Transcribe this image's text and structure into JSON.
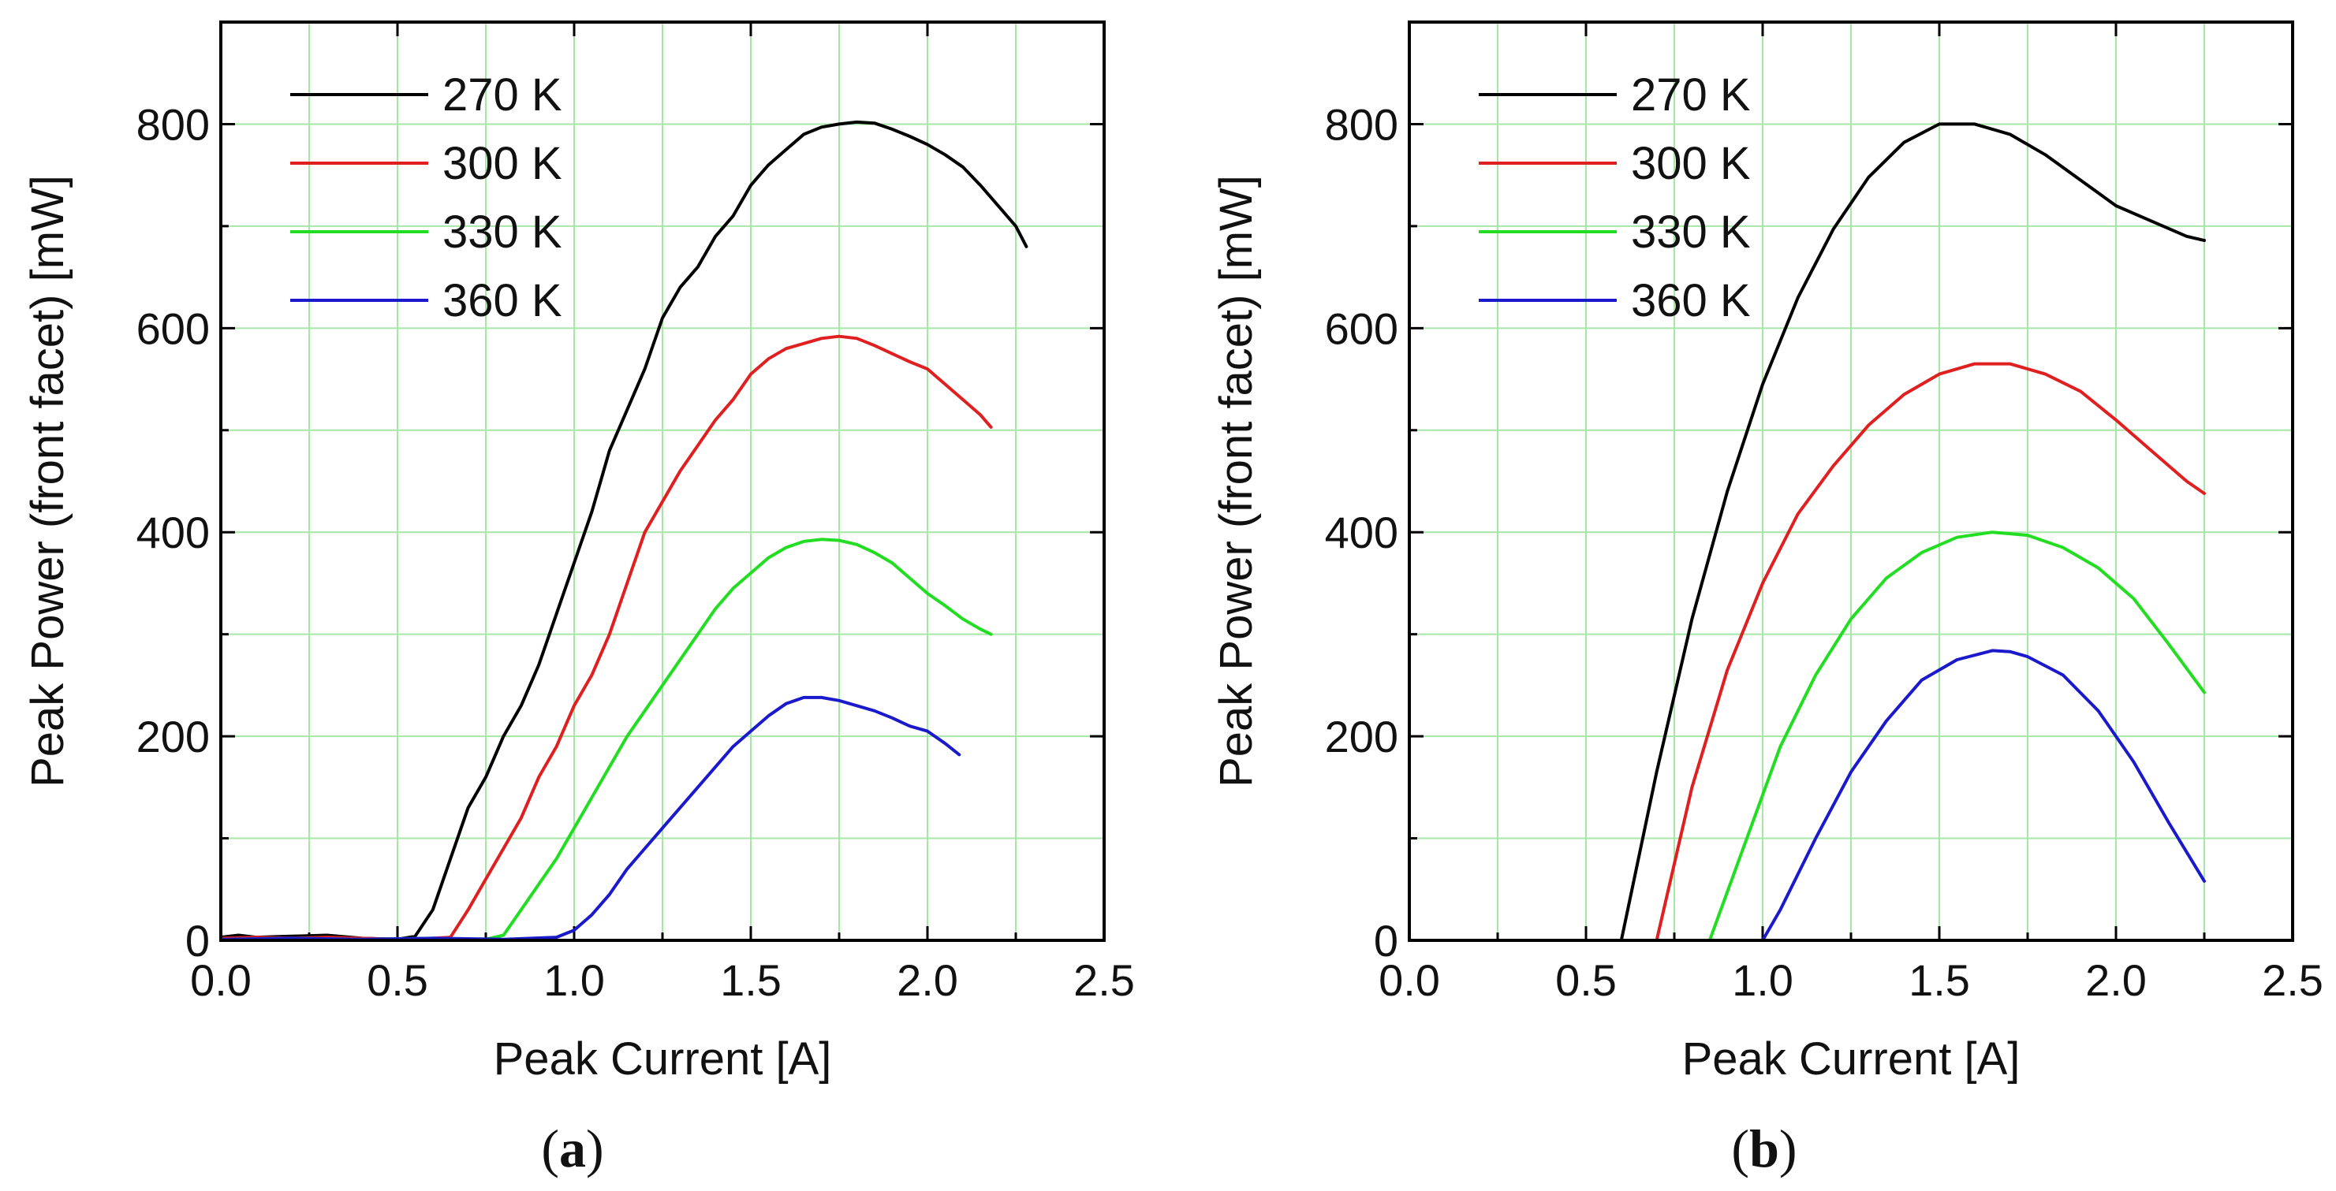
{
  "chart_data": [
    {
      "type": "line",
      "caption": "a",
      "xlabel": "Peak Current [A]",
      "ylabel": "Peak Power (front facet) [mW]",
      "xlim": [
        0.0,
        2.5
      ],
      "ylim": [
        0,
        900
      ],
      "xticks": [
        "0.0",
        "0.5",
        "1.0",
        "1.5",
        "2.0",
        "2.5"
      ],
      "yticks": [
        "0",
        "200",
        "400",
        "600",
        "800"
      ],
      "grid": true,
      "grid_color": "#a6e6a6",
      "legend_position": "top-left",
      "series": [
        {
          "name": "270 K",
          "color": "#000000",
          "x": [
            0.0,
            0.05,
            0.1,
            0.2,
            0.3,
            0.4,
            0.5,
            0.55,
            0.6,
            0.65,
            0.7,
            0.75,
            0.8,
            0.85,
            0.9,
            0.95,
            1.0,
            1.05,
            1.1,
            1.15,
            1.2,
            1.25,
            1.3,
            1.35,
            1.4,
            1.45,
            1.5,
            1.55,
            1.6,
            1.65,
            1.7,
            1.75,
            1.8,
            1.85,
            1.9,
            1.95,
            2.0,
            2.05,
            2.1,
            2.15,
            2.2,
            2.25,
            2.28
          ],
          "y": [
            3,
            5,
            3,
            4,
            5,
            2,
            1,
            4,
            30,
            80,
            130,
            160,
            200,
            230,
            270,
            320,
            370,
            420,
            480,
            520,
            560,
            610,
            640,
            660,
            690,
            710,
            740,
            760,
            775,
            790,
            797,
            800,
            802,
            801,
            795,
            788,
            780,
            770,
            758,
            740,
            720,
            700,
            680
          ]
        },
        {
          "name": "300 K",
          "color": "#e02020",
          "x": [
            0.0,
            0.1,
            0.2,
            0.3,
            0.4,
            0.5,
            0.6,
            0.65,
            0.7,
            0.75,
            0.8,
            0.85,
            0.9,
            0.95,
            1.0,
            1.05,
            1.1,
            1.15,
            1.2,
            1.25,
            1.3,
            1.35,
            1.4,
            1.45,
            1.5,
            1.55,
            1.6,
            1.65,
            1.7,
            1.75,
            1.8,
            1.85,
            1.9,
            1.95,
            2.0,
            2.05,
            2.1,
            2.15,
            2.18
          ],
          "y": [
            2,
            3,
            2,
            3,
            2,
            1,
            2,
            3,
            30,
            60,
            90,
            120,
            160,
            190,
            230,
            260,
            300,
            350,
            400,
            430,
            460,
            485,
            510,
            530,
            555,
            570,
            580,
            585,
            590,
            592,
            590,
            583,
            575,
            567,
            560,
            545,
            530,
            515,
            503
          ]
        },
        {
          "name": "330 K",
          "color": "#22dd22",
          "x": [
            0.0,
            0.2,
            0.4,
            0.6,
            0.75,
            0.8,
            0.85,
            0.9,
            0.95,
            1.0,
            1.05,
            1.1,
            1.15,
            1.2,
            1.25,
            1.3,
            1.35,
            1.4,
            1.45,
            1.5,
            1.55,
            1.6,
            1.65,
            1.7,
            1.75,
            1.8,
            1.85,
            1.9,
            1.95,
            2.0,
            2.05,
            2.1,
            2.15,
            2.18
          ],
          "y": [
            1,
            2,
            1,
            2,
            1,
            5,
            30,
            55,
            80,
            110,
            140,
            170,
            200,
            225,
            250,
            275,
            300,
            325,
            345,
            360,
            375,
            385,
            391,
            393,
            392,
            388,
            380,
            370,
            355,
            340,
            328,
            315,
            305,
            300
          ]
        },
        {
          "name": "360 K",
          "color": "#1a1acc",
          "x": [
            0.0,
            0.2,
            0.4,
            0.6,
            0.8,
            0.95,
            1.0,
            1.05,
            1.1,
            1.15,
            1.2,
            1.25,
            1.3,
            1.35,
            1.4,
            1.45,
            1.5,
            1.55,
            1.6,
            1.65,
            1.7,
            1.75,
            1.8,
            1.85,
            1.9,
            1.95,
            2.0,
            2.05,
            2.09
          ],
          "y": [
            1,
            2,
            1,
            2,
            1,
            3,
            10,
            25,
            45,
            70,
            90,
            110,
            130,
            150,
            170,
            190,
            205,
            220,
            232,
            238,
            238,
            235,
            230,
            225,
            218,
            210,
            205,
            193,
            182
          ]
        }
      ]
    },
    {
      "type": "line",
      "caption": "b",
      "xlabel": "Peak Current [A]",
      "ylabel": "Peak Power (front facet) [mW]",
      "xlim": [
        0.0,
        2.5
      ],
      "ylim": [
        0,
        900
      ],
      "xticks": [
        "0.0",
        "0.5",
        "1.0",
        "1.5",
        "2.0",
        "2.5"
      ],
      "yticks": [
        "0",
        "200",
        "400",
        "600",
        "800"
      ],
      "grid": true,
      "grid_color": "#a6e6a6",
      "legend_position": "top-left",
      "series": [
        {
          "name": "270 K",
          "color": "#000000",
          "x": [
            0.0,
            0.6,
            0.7,
            0.8,
            0.9,
            1.0,
            1.1,
            1.2,
            1.3,
            1.4,
            1.5,
            1.6,
            1.7,
            1.8,
            1.9,
            2.0,
            2.1,
            2.2,
            2.25
          ],
          "y": [
            0,
            0,
            165,
            315,
            440,
            545,
            630,
            697,
            748,
            782,
            800,
            800,
            790,
            770,
            745,
            720,
            705,
            690,
            686
          ]
        },
        {
          "name": "300 K",
          "color": "#e02020",
          "x": [
            0.0,
            0.7,
            0.8,
            0.9,
            1.0,
            1.1,
            1.2,
            1.3,
            1.4,
            1.5,
            1.6,
            1.7,
            1.8,
            1.9,
            2.0,
            2.1,
            2.2,
            2.25
          ],
          "y": [
            0,
            0,
            150,
            265,
            350,
            418,
            465,
            505,
            535,
            555,
            565,
            565,
            555,
            538,
            510,
            480,
            450,
            438
          ]
        },
        {
          "name": "330 K",
          "color": "#22dd22",
          "x": [
            0.0,
            0.85,
            0.95,
            1.05,
            1.15,
            1.25,
            1.35,
            1.45,
            1.55,
            1.65,
            1.75,
            1.85,
            1.95,
            2.05,
            2.15,
            2.25
          ],
          "y": [
            0,
            0,
            95,
            190,
            260,
            315,
            355,
            380,
            395,
            400,
            397,
            385,
            365,
            335,
            290,
            243
          ]
        },
        {
          "name": "360 K",
          "color": "#1a1acc",
          "x": [
            0.0,
            1.0,
            1.05,
            1.15,
            1.25,
            1.35,
            1.45,
            1.55,
            1.65,
            1.7,
            1.75,
            1.85,
            1.95,
            2.05,
            2.15,
            2.25
          ],
          "y": [
            0,
            0,
            30,
            100,
            165,
            215,
            255,
            275,
            284,
            283,
            278,
            260,
            225,
            175,
            115,
            58
          ]
        }
      ]
    }
  ]
}
